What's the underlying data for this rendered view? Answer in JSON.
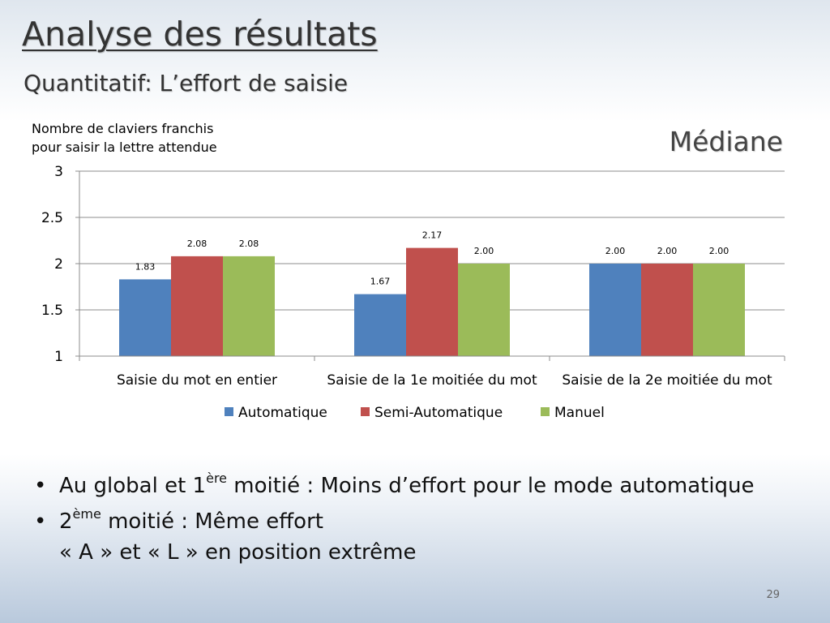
{
  "slide": {
    "title": "Analyse des résultats",
    "subtitle": "Quantitatif: L’effort de saisie",
    "corner_label": "Médiane",
    "page_number": "29"
  },
  "chart_data": {
    "type": "bar",
    "ylabel_lines": [
      "Nombre de claviers franchis",
      "pour saisir la lettre attendue"
    ],
    "categories": [
      "Saisie du mot en entier",
      "Saisie de la 1e moitiée du mot",
      "Saisie de la 2e moitiée du mot"
    ],
    "series": [
      {
        "name": "Automatique",
        "values": [
          1.83,
          1.67,
          2.0
        ],
        "labels": [
          "1.83",
          "1.67",
          "2.00"
        ],
        "color": "#4f81bd"
      },
      {
        "name": "Semi-Automatique",
        "values": [
          2.08,
          2.17,
          2.0
        ],
        "labels": [
          "2.08",
          "2.17",
          "2.00"
        ],
        "color": "#c0504d"
      },
      {
        "name": "Manuel",
        "values": [
          2.08,
          2.0,
          2.0
        ],
        "labels": [
          "2.08",
          "2.00",
          "2.00"
        ],
        "color": "#9bbb59"
      }
    ],
    "ylim": [
      1,
      3
    ],
    "yticks": [
      1,
      1.5,
      2,
      2.5,
      3
    ],
    "ytick_labels": [
      "1",
      "1.5",
      "2",
      "2.5",
      "3"
    ],
    "grid": true,
    "legend_position": "bottom"
  },
  "bullets": [
    {
      "pre": "Au global et 1",
      "sup": "ère",
      "post": " moitié : Moins d’effort pour le mode automatique",
      "line2": ""
    },
    {
      "pre": "2",
      "sup": "ème",
      "post": " moitié : Même effort",
      "line2": "« A » et « L » en position extrême"
    }
  ]
}
